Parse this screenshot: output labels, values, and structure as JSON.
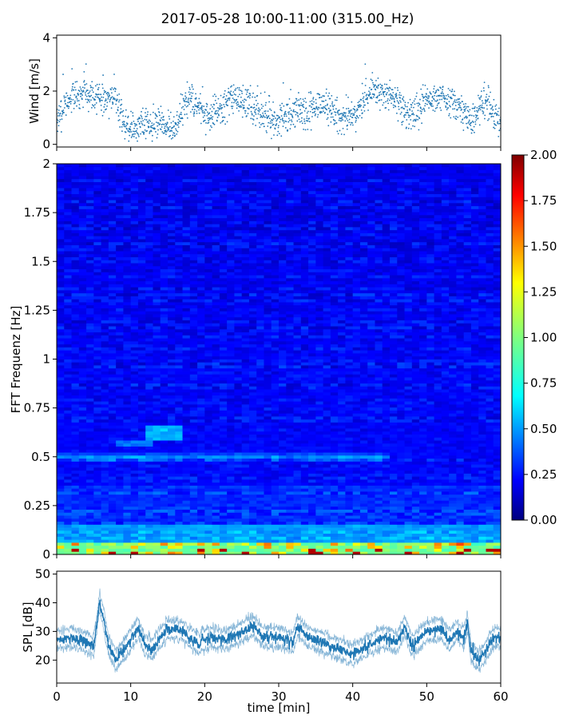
{
  "title": "2017-05-28 10:00-11:00 (315.00_Hz)",
  "chart_data": [
    {
      "type": "scatter",
      "panel": "wind",
      "ylabel": "Wind [m/s]",
      "xlim": [
        0,
        60
      ],
      "ylim": [
        -0.1,
        4.1
      ],
      "yticks": [
        "0",
        "2",
        "4"
      ],
      "ytick_values": [
        0,
        2,
        4
      ],
      "color": "#1f77b4",
      "profile_x": [
        0,
        2,
        4,
        6,
        8,
        9,
        10,
        12,
        14,
        16,
        18,
        20,
        22,
        24,
        26,
        28,
        30,
        32,
        34,
        36,
        38,
        40,
        42,
        44,
        46,
        48,
        50,
        52,
        54,
        56,
        58,
        60
      ],
      "profile_y": [
        0.9,
        1.8,
        2.0,
        1.7,
        1.8,
        0.8,
        0.6,
        0.8,
        0.7,
        0.6,
        1.8,
        1.0,
        1.2,
        1.8,
        1.5,
        1.0,
        0.8,
        1.3,
        1.2,
        1.6,
        1.0,
        1.0,
        1.9,
        2.0,
        1.6,
        1.0,
        1.6,
        1.8,
        1.5,
        0.9,
        1.6,
        0.8
      ]
    },
    {
      "type": "heatmap",
      "panel": "spectrogram",
      "ylabel": "FFT Frequenz [Hz]",
      "xlim": [
        0,
        60
      ],
      "ylim": [
        0,
        2
      ],
      "yticks": [
        "0",
        "0.25",
        "0.5",
        "0.75",
        "1",
        "1.25",
        "1.5",
        "1.75",
        "2"
      ],
      "ytick_values": [
        0,
        0.25,
        0.5,
        0.75,
        1,
        1.25,
        1.5,
        1.75,
        2
      ],
      "colormap": "jet",
      "colorbar_range": [
        0,
        2
      ],
      "colorbar_ticks": [
        "0.00",
        "0.25",
        "0.50",
        "0.75",
        "1.00",
        "1.25",
        "1.50",
        "1.75",
        "2.00"
      ],
      "colorbar_tick_values": [
        0,
        0.25,
        0.5,
        0.75,
        1,
        1.25,
        1.5,
        1.75,
        2
      ]
    },
    {
      "type": "line",
      "panel": "spl",
      "ylabel": "SPL [dB]",
      "xlabel": "time [min]",
      "xlim": [
        0,
        60
      ],
      "ylim": [
        12,
        51
      ],
      "yticks": [
        "20",
        "30",
        "40",
        "50"
      ],
      "ytick_values": [
        20,
        30,
        40,
        50
      ],
      "xticks": [
        "0",
        "10",
        "20",
        "30",
        "40",
        "50",
        "60"
      ],
      "xtick_values": [
        0,
        10,
        20,
        30,
        40,
        50,
        60
      ],
      "color": "#1f77b4",
      "profile_x": [
        0,
        2,
        4,
        5,
        5.8,
        6.3,
        7,
        8,
        10,
        11,
        12,
        13,
        14,
        15,
        17,
        19,
        21,
        23,
        25,
        26.5,
        28,
        30,
        32,
        32.5,
        34,
        36,
        38,
        40,
        42,
        44,
        46,
        47,
        48,
        50,
        52,
        53,
        54,
        55,
        55.5,
        56,
        57,
        58,
        59,
        60
      ],
      "profile_y": [
        27,
        28,
        26,
        25,
        40,
        35,
        25,
        20,
        27,
        31,
        25,
        24,
        28,
        31,
        30,
        26,
        28,
        27,
        30,
        32,
        28,
        28,
        26,
        32,
        28,
        26,
        24,
        22,
        25,
        28,
        26,
        32,
        25,
        30,
        31,
        27,
        30,
        28,
        33,
        23,
        20,
        23,
        28,
        28
      ]
    }
  ]
}
